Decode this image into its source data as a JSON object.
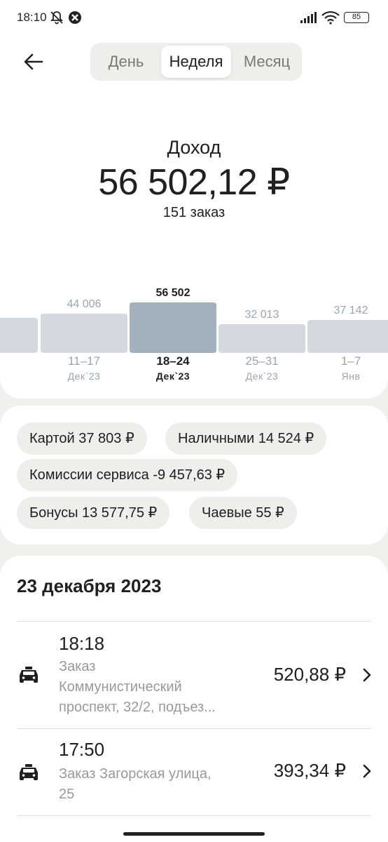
{
  "status_bar": {
    "time": "18:10",
    "battery": "85"
  },
  "period_tabs": [
    {
      "label": "День",
      "active": false
    },
    {
      "label": "Неделя",
      "active": true
    },
    {
      "label": "Месяц",
      "active": false
    }
  ],
  "income": {
    "label": "Доход",
    "amount": "56 502,12 ₽",
    "orders": "151 заказ"
  },
  "chart_data": {
    "type": "bar",
    "categories": [
      "11–17 Дек`23",
      "18–24 Дек`23",
      "25–31 Дек`23",
      "1–7 Янв"
    ],
    "values": [
      44006,
      56502,
      32013,
      37142
    ],
    "value_labels": [
      "44 006",
      "56 502",
      "32 013",
      "37 142"
    ],
    "range_labels": [
      "11–17",
      "18–24",
      "25–31",
      "1–7"
    ],
    "month_labels": [
      "Дек`23",
      "Дек`23",
      "Дек`23",
      "Янв"
    ],
    "selected_index": 1,
    "colors": {
      "bar": "#d3d9df",
      "selected": "#a3b1bd"
    }
  },
  "summary_chips": {
    "card": "Картой 37 803 ₽",
    "cash": "Наличными 14 524 ₽",
    "commission": "Комиссии сервиса -9 457,63 ₽",
    "bonus": "Бонусы 13 577,75 ₽",
    "tips": "Чаевые 55 ₽"
  },
  "orders_section": {
    "date": "23 декабря 2023",
    "orders": [
      {
        "time": "18:18",
        "desc_line1": "Заказ",
        "desc_line2": "Коммунистический",
        "desc_line3": "проспект, 32/2, подъез...",
        "amount": "520,88 ₽",
        "icon": "taxi-icon"
      },
      {
        "time": "17:50",
        "desc_line1": "Заказ Загорская улица,",
        "desc_line2": "25",
        "amount": "393,34 ₽",
        "icon": "taxi-icon"
      }
    ]
  }
}
